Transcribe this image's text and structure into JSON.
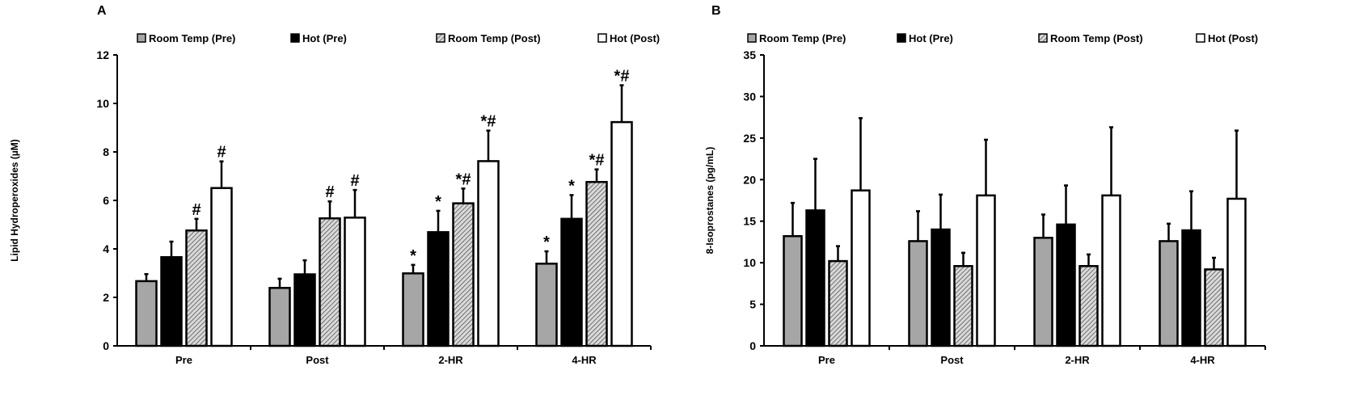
{
  "colors": {
    "room_temp_pre": "#a6a6a6",
    "hot_pre": "#000000",
    "room_temp_post": "hatched-gray",
    "hot_post": "#ffffff"
  },
  "chart_data": [
    {
      "type": "bar",
      "panel_label": "A",
      "ylabel": "Lipid Hydroperoxides (µM)",
      "ylim": [
        0,
        12
      ],
      "yticks": [
        0,
        2,
        4,
        6,
        8,
        10,
        12
      ],
      "categories": [
        "Pre",
        "Post",
        "2-HR",
        "4-HR"
      ],
      "legend_position": "top",
      "grid": false,
      "series": [
        {
          "name": "Room Temp (Pre)",
          "values": [
            2.67,
            2.39,
            2.99,
            3.39
          ],
          "error_upper": [
            2.96,
            2.77,
            3.34,
            3.9
          ],
          "annotations": [
            "",
            "",
            "*",
            "*"
          ]
        },
        {
          "name": "Hot (Pre)",
          "values": [
            3.66,
            2.95,
            4.69,
            5.24
          ],
          "error_upper": [
            4.3,
            3.53,
            5.57,
            6.22
          ],
          "annotations": [
            "",
            "",
            "*",
            "*"
          ]
        },
        {
          "name": "Room Temp (Post)",
          "values": [
            4.76,
            5.26,
            5.88,
            6.76
          ],
          "error_upper": [
            5.24,
            5.96,
            6.49,
            7.28
          ],
          "annotations": [
            "#",
            "#",
            "*#",
            "*#"
          ]
        },
        {
          "name": "Hot (Post)",
          "values": [
            6.51,
            5.29,
            7.62,
            9.23
          ],
          "error_upper": [
            7.61,
            6.43,
            8.88,
            10.75
          ],
          "annotations": [
            "#",
            "#",
            "*#",
            "*#"
          ]
        }
      ]
    },
    {
      "type": "bar",
      "panel_label": "B",
      "ylabel": "8-Isoprostanes (pg/mL)",
      "ylim": [
        0,
        35
      ],
      "yticks": [
        0,
        5,
        10,
        15,
        20,
        25,
        30,
        35
      ],
      "categories": [
        "Pre",
        "Post",
        "2-HR",
        "4-HR"
      ],
      "legend_position": "top",
      "grid": false,
      "series": [
        {
          "name": "Room Temp (Pre)",
          "values": [
            13.2,
            12.6,
            13.0,
            12.6
          ],
          "error_upper": [
            17.2,
            16.2,
            15.8,
            14.7
          ],
          "annotations": [
            "",
            "",
            "",
            ""
          ]
        },
        {
          "name": "Hot (Pre)",
          "values": [
            16.3,
            14.0,
            14.6,
            13.9
          ],
          "error_upper": [
            22.5,
            18.2,
            19.3,
            18.6
          ],
          "annotations": [
            "",
            "",
            "",
            ""
          ]
        },
        {
          "name": "Room Temp (Post)",
          "values": [
            10.2,
            9.6,
            9.6,
            9.2
          ],
          "error_upper": [
            12.0,
            11.2,
            11.0,
            10.6
          ],
          "annotations": [
            "",
            "",
            "",
            ""
          ]
        },
        {
          "name": "Hot (Post)",
          "values": [
            18.7,
            18.1,
            18.1,
            17.7
          ],
          "error_upper": [
            27.4,
            24.8,
            26.3,
            25.9
          ],
          "annotations": [
            "",
            "",
            "",
            ""
          ]
        }
      ]
    }
  ]
}
